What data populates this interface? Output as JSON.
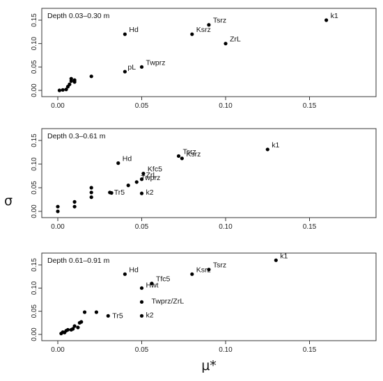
{
  "chart_data": [
    {
      "type": "scatter",
      "panel_label": "Depth 0.03–0.30 m",
      "xlim": [
        0,
        0.16
      ],
      "ylim": [
        0,
        0.16
      ],
      "xticks": [
        "0.00",
        "0.05",
        "0.10",
        "0.15"
      ],
      "yticks": [
        "0.00",
        "0.05",
        "0.10",
        "0.15"
      ],
      "points": [
        {
          "label": "",
          "x": 0.001,
          "y": 0.0
        },
        {
          "label": "",
          "x": 0.003,
          "y": 0.001
        },
        {
          "label": "",
          "x": 0.005,
          "y": 0.002
        },
        {
          "label": "",
          "x": 0.006,
          "y": 0.008
        },
        {
          "label": "",
          "x": 0.007,
          "y": 0.013
        },
        {
          "label": "",
          "x": 0.008,
          "y": 0.02
        },
        {
          "label": "",
          "x": 0.008,
          "y": 0.025
        },
        {
          "label": "",
          "x": 0.01,
          "y": 0.018
        },
        {
          "label": "",
          "x": 0.01,
          "y": 0.022
        },
        {
          "label": "",
          "x": 0.02,
          "y": 0.03
        },
        {
          "label": "pL",
          "x": 0.04,
          "y": 0.04
        },
        {
          "label": "Twprz",
          "x": 0.05,
          "y": 0.05
        },
        {
          "label": "Hd",
          "x": 0.04,
          "y": 0.12
        },
        {
          "label": "Ksrz",
          "x": 0.08,
          "y": 0.12
        },
        {
          "label": "Tsrz",
          "x": 0.09,
          "y": 0.14
        },
        {
          "label": "ZrL",
          "x": 0.1,
          "y": 0.1
        },
        {
          "label": "k1",
          "x": 0.16,
          "y": 0.15
        }
      ]
    },
    {
      "type": "scatter",
      "panel_label": "Depth 0.3–0.61 m",
      "xlim": [
        0,
        0.16
      ],
      "ylim": [
        0,
        0.16
      ],
      "xticks": [
        "0.00",
        "0.05",
        "0.10",
        "0.15"
      ],
      "yticks": [
        "0.00",
        "0.05",
        "0.10",
        "0.15"
      ],
      "points": [
        {
          "label": "",
          "x": 0.0,
          "y": 0.0
        },
        {
          "label": "",
          "x": 0.0,
          "y": 0.01
        },
        {
          "label": "",
          "x": 0.01,
          "y": 0.01
        },
        {
          "label": "",
          "x": 0.01,
          "y": 0.02
        },
        {
          "label": "",
          "x": 0.02,
          "y": 0.03
        },
        {
          "label": "",
          "x": 0.02,
          "y": 0.04
        },
        {
          "label": "",
          "x": 0.02,
          "y": 0.05
        },
        {
          "label": "Tr5",
          "x": 0.031,
          "y": 0.04
        },
        {
          "label": "",
          "x": 0.032,
          "y": 0.039
        },
        {
          "label": "",
          "x": 0.042,
          "y": 0.055
        },
        {
          "label": "Twprz",
          "x": 0.047,
          "y": 0.062
        },
        {
          "label": "ZrL",
          "x": 0.05,
          "y": 0.068
        },
        {
          "label": "Kfc5",
          "x": 0.051,
          "y": 0.08
        },
        {
          "label": "k2",
          "x": 0.05,
          "y": 0.038
        },
        {
          "label": "Hd",
          "x": 0.036,
          "y": 0.102
        },
        {
          "label": "Tsrz",
          "x": 0.072,
          "y": 0.117
        },
        {
          "label": "Ksrz",
          "x": 0.074,
          "y": 0.112
        },
        {
          "label": "k1",
          "x": 0.125,
          "y": 0.131
        }
      ]
    },
    {
      "type": "scatter",
      "panel_label": "Depth 0.61–0.91 m",
      "xlim": [
        0,
        0.16
      ],
      "ylim": [
        0,
        0.16
      ],
      "xticks": [
        "0.00",
        "0.05",
        "0.10",
        "0.15"
      ],
      "yticks": [
        "0.00",
        "0.05",
        "0.10",
        "0.15"
      ],
      "points": [
        {
          "label": "",
          "x": 0.002,
          "y": 0.002
        },
        {
          "label": "",
          "x": 0.003,
          "y": 0.005
        },
        {
          "label": "",
          "x": 0.004,
          "y": 0.004
        },
        {
          "label": "",
          "x": 0.005,
          "y": 0.008
        },
        {
          "label": "",
          "x": 0.006,
          "y": 0.01
        },
        {
          "label": "",
          "x": 0.008,
          "y": 0.01
        },
        {
          "label": "",
          "x": 0.009,
          "y": 0.012
        },
        {
          "label": "",
          "x": 0.01,
          "y": 0.018
        },
        {
          "label": "",
          "x": 0.012,
          "y": 0.015
        },
        {
          "label": "",
          "x": 0.013,
          "y": 0.025
        },
        {
          "label": "",
          "x": 0.014,
          "y": 0.027
        },
        {
          "label": "",
          "x": 0.016,
          "y": 0.048
        },
        {
          "label": "",
          "x": 0.023,
          "y": 0.048
        },
        {
          "label": "Tr5",
          "x": 0.03,
          "y": 0.04
        },
        {
          "label": "k2",
          "x": 0.05,
          "y": 0.04
        },
        {
          "label": "Twprz/ZrL",
          "x": 0.05,
          "y": 0.07
        },
        {
          "label": "Hwt",
          "x": 0.05,
          "y": 0.1
        },
        {
          "label": "Tfc5",
          "x": 0.056,
          "y": 0.11
        },
        {
          "label": "Hd",
          "x": 0.04,
          "y": 0.13
        },
        {
          "label": "Ksrz",
          "x": 0.08,
          "y": 0.13
        },
        {
          "label": "Tsrz",
          "x": 0.09,
          "y": 0.14
        },
        {
          "label": "k1",
          "x": 0.13,
          "y": 0.16
        }
      ]
    }
  ],
  "ylabel": "σ",
  "xlabel": "μ*",
  "colors": {
    "points": "#000000",
    "frame": "#333333"
  }
}
